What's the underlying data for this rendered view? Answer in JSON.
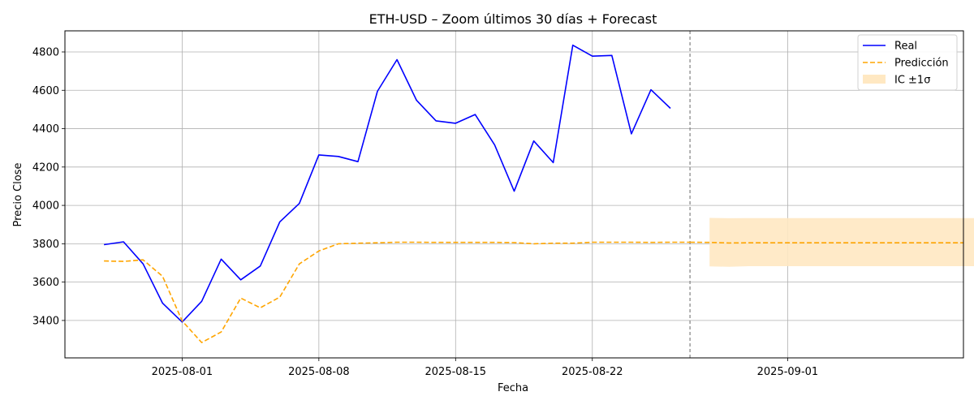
{
  "chart_data": {
    "type": "line",
    "title": "ETH-USD – Zoom últimos 30 días + Forecast",
    "xlabel": "Fecha",
    "ylabel": "Precio Close",
    "x_start": "2025-07-28",
    "xlim": [
      "2025-07-26",
      "2025-09-10"
    ],
    "ylim": [
      3205,
      4910
    ],
    "yticks": [
      3400,
      3600,
      3800,
      4000,
      4200,
      4400,
      4600,
      4800
    ],
    "xticks": [
      "2025-08-01",
      "2025-08-08",
      "2025-08-15",
      "2025-08-22",
      "2025-09-01"
    ],
    "forecast_start": "2025-08-27",
    "grid": true,
    "legend_position": "top-right",
    "legend": {
      "real": "Real",
      "pred": "Predicción",
      "ci": "IC ±1σ"
    },
    "colors": {
      "real": "#0000ff",
      "pred": "#ffa500",
      "ci_fill": "#ffe8c2",
      "grid": "#b0b0b0",
      "vline": "#808080"
    },
    "series": [
      {
        "name": "Real",
        "style": "solid",
        "color": "#0000ff",
        "values": [
          3795,
          3810,
          3695,
          3490,
          3392,
          3500,
          3720,
          3612,
          3684,
          3914,
          4010,
          4263,
          4255,
          4228,
          4595,
          4760,
          4548,
          4441,
          4428,
          4474,
          4315,
          4074,
          4336,
          4223,
          4835,
          4778,
          4782,
          4373,
          4603,
          4506
        ]
      },
      {
        "name": "Predicción",
        "style": "dashed",
        "color": "#ffa500",
        "values": [
          3710,
          3708,
          3716,
          3630,
          3398,
          3285,
          3340,
          3517,
          3466,
          3522,
          3695,
          3762,
          3800,
          3803,
          3805,
          3808,
          3808,
          3807,
          3807,
          3807,
          3807,
          3806,
          3800,
          3803,
          3803,
          3808,
          3808,
          3808,
          3807,
          3808,
          3808
        ]
      }
    ],
    "forecast_line": {
      "start": "2025-08-27",
      "values": [
        3808,
        3807,
        3804,
        3805,
        3805,
        3805,
        3805,
        3805,
        3805,
        3805,
        3805,
        3805,
        3805,
        3805,
        3805
      ]
    },
    "ci_band": {
      "start": "2025-08-28",
      "lower": [
        3682,
        3680,
        3683,
        3683,
        3683,
        3683,
        3683,
        3683,
        3683,
        3683,
        3683,
        3683,
        3683,
        3683,
        3683
      ],
      "upper": [
        3935,
        3933,
        3934,
        3934,
        3934,
        3934,
        3934,
        3934,
        3934,
        3934,
        3934,
        3934,
        3934,
        3934,
        3934
      ]
    }
  }
}
